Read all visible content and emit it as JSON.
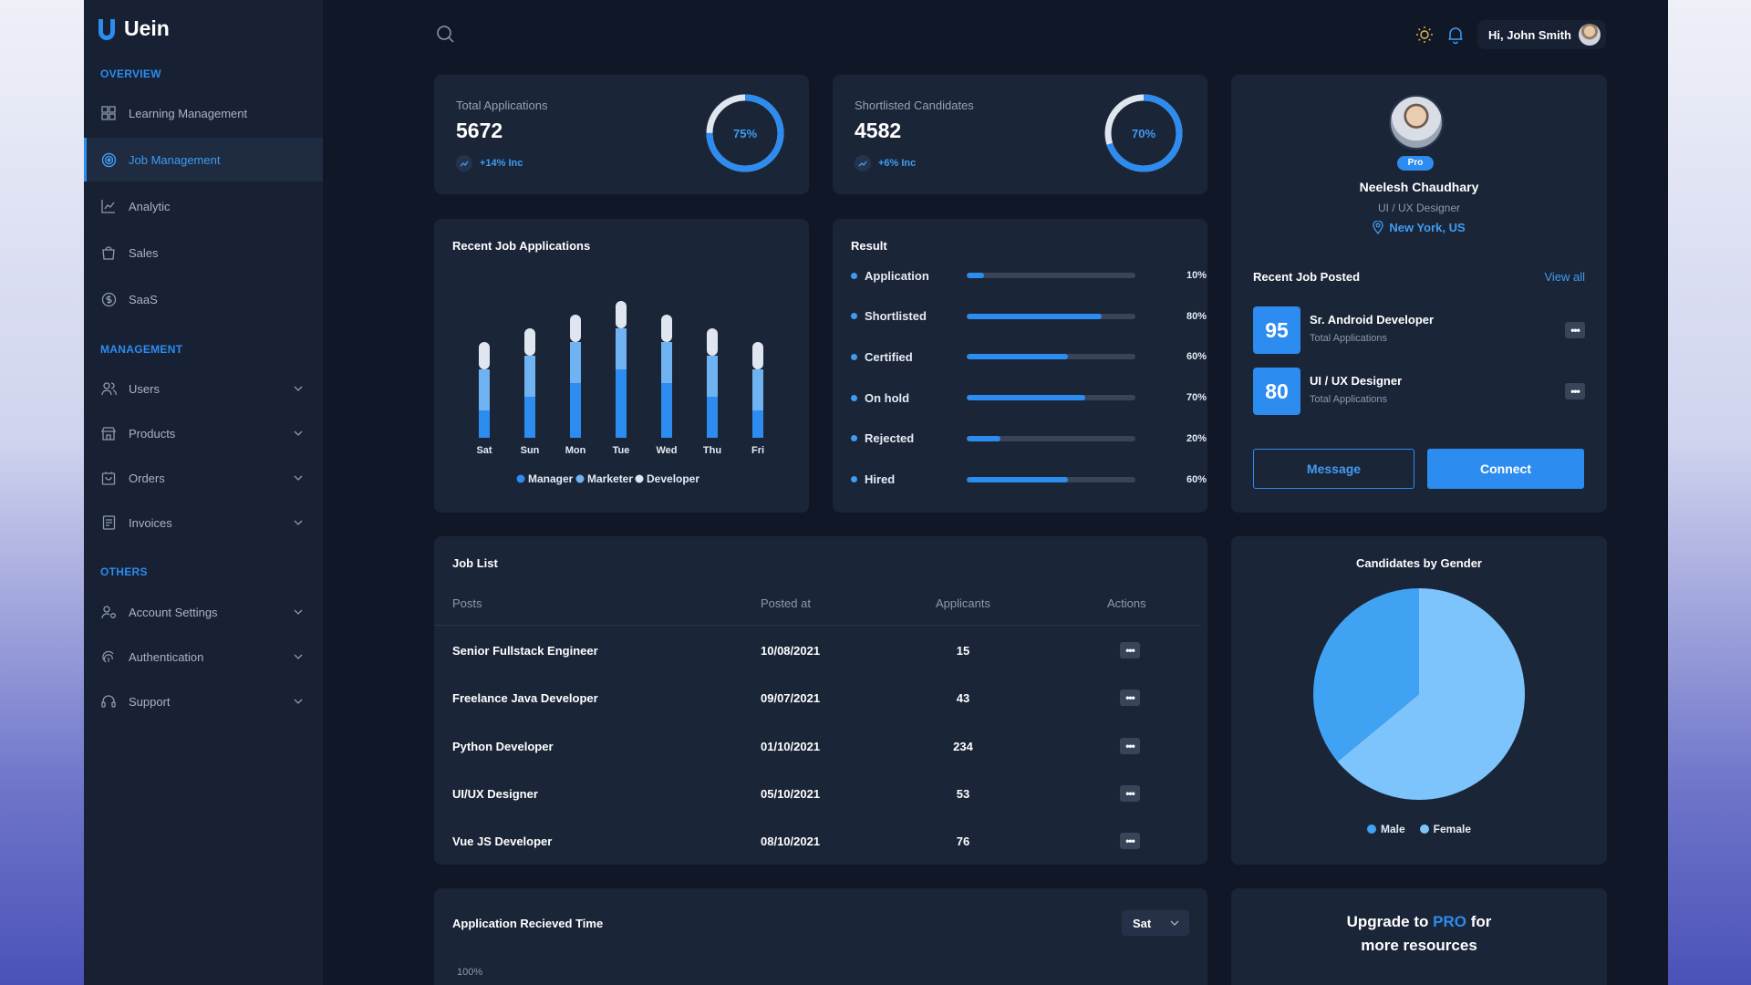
{
  "brand": {
    "name": "Uein"
  },
  "sidebar": {
    "sections": [
      {
        "label": "OVERVIEW"
      },
      {
        "label": "MANAGEMENT"
      },
      {
        "label": "OTHERS"
      }
    ],
    "overview_items": [
      {
        "label": "Learning Management",
        "icon": "grid-icon"
      },
      {
        "label": "Job Management",
        "icon": "target-icon",
        "active": true
      },
      {
        "label": "Analytic",
        "icon": "chart-icon"
      },
      {
        "label": "Sales",
        "icon": "bag-icon"
      },
      {
        "label": "SaaS",
        "icon": "dollar-icon"
      }
    ],
    "management_items": [
      {
        "label": "Users",
        "icon": "users-icon"
      },
      {
        "label": "Products",
        "icon": "store-icon"
      },
      {
        "label": "Orders",
        "icon": "cart-icon"
      },
      {
        "label": "Invoices",
        "icon": "invoice-icon"
      }
    ],
    "other_items": [
      {
        "label": "Account Settings",
        "icon": "user-settings-icon"
      },
      {
        "label": "Authentication",
        "icon": "fingerprint-icon"
      },
      {
        "label": "Support",
        "icon": "headset-icon"
      }
    ]
  },
  "topbar": {
    "greeting": "Hi, John Smith"
  },
  "stats": [
    {
      "label": "Total Applications",
      "value": "5672",
      "inc": "+14% Inc",
      "percent": 75,
      "percent_label": "75%"
    },
    {
      "label": "Shortlisted Candidates",
      "value": "4582",
      "inc": "+6% Inc",
      "percent": 70,
      "percent_label": "70%"
    }
  ],
  "recent_applications": {
    "title": "Recent Job Applications",
    "chart_data": {
      "type": "bar",
      "stacked": true,
      "categories": [
        "Sat",
        "Sun",
        "Mon",
        "Tue",
        "Wed",
        "Thu",
        "Fri"
      ],
      "series": [
        {
          "name": "Manager",
          "color": "#2d8cf0",
          "values": [
            20,
            30,
            40,
            50,
            40,
            30,
            20
          ]
        },
        {
          "name": "Marketer",
          "color": "#6fb3f2",
          "values": [
            30,
            30,
            30,
            30,
            30,
            30,
            30
          ]
        },
        {
          "name": "Developer",
          "color": "#dfe6f0",
          "values": [
            20,
            20,
            20,
            20,
            20,
            20,
            20
          ]
        }
      ],
      "legend": "bottom"
    }
  },
  "result": {
    "title": "Result",
    "rows": [
      {
        "label": "Application",
        "value": 10,
        "pct": "10%"
      },
      {
        "label": "Shortlisted",
        "value": 80,
        "pct": "80%"
      },
      {
        "label": "Certified",
        "value": 60,
        "pct": "60%"
      },
      {
        "label": "On hold",
        "value": 70,
        "pct": "70%"
      },
      {
        "label": "Rejected",
        "value": 20,
        "pct": "20%"
      },
      {
        "label": "Hired",
        "value": 60,
        "pct": "60%"
      }
    ]
  },
  "profile": {
    "badge": "Pro",
    "name": "Neelesh Chaudhary",
    "role": "UI / UX Designer",
    "location": "New York, US",
    "posted_title": "Recent Job Posted",
    "view_all": "View all",
    "posted": [
      {
        "count": "95",
        "title": "Sr. Android Developer",
        "sub": "Total Applications"
      },
      {
        "count": "80",
        "title": "UI / UX Designer",
        "sub": "Total Applications"
      }
    ],
    "message_label": "Message",
    "connect_label": "Connect"
  },
  "job_list": {
    "title": "Job List",
    "columns": [
      "Posts",
      "Posted at",
      "Applicants",
      "Actions"
    ],
    "rows": [
      {
        "post": "Senior Fullstack Engineer",
        "date": "10/08/2021",
        "applicants": "15"
      },
      {
        "post": "Freelance Java Developer",
        "date": "09/07/2021",
        "applicants": "43"
      },
      {
        "post": "Python Developer",
        "date": "01/10/2021",
        "applicants": "234"
      },
      {
        "post": "UI/UX Designer",
        "date": "05/10/2021",
        "applicants": "53"
      },
      {
        "post": "Vue JS Developer",
        "date": "08/10/2021",
        "applicants": "76"
      }
    ]
  },
  "gender": {
    "title": "Candidates by Gender",
    "chart_data": {
      "type": "pie",
      "labels": [
        "Male",
        "Female"
      ],
      "values": [
        36,
        64
      ],
      "colors": [
        "#3fa2f2",
        "#7cc4fb"
      ],
      "legend": "bottom"
    }
  },
  "received_time": {
    "title": "Application Recieved Time",
    "select_value": "Sat",
    "y_tick_top": "100%"
  },
  "upgrade": {
    "pre": "Upgrade to",
    "pro": "PRO",
    "post": "for",
    "line2": "more resources"
  }
}
